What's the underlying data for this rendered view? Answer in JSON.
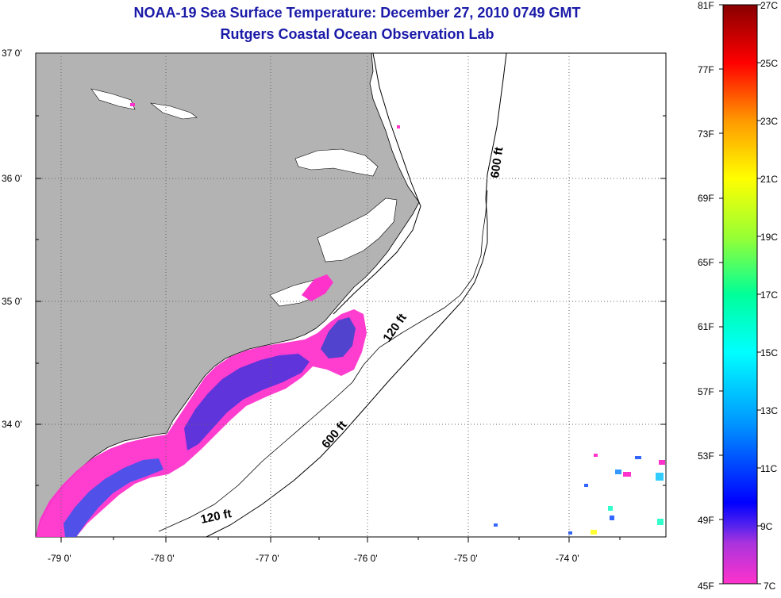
{
  "title": {
    "line1": "NOAA-19 Sea Surface Temperature:  December 27, 2010 0749 GMT",
    "line2": "Rutgers Coastal Ocean Observation Lab"
  },
  "lat_labels": [
    "37 0'",
    "36 0'",
    "35 0'",
    "34 0'"
  ],
  "lon_labels": [
    "-79 0'",
    "-78 0'",
    "-77 0'",
    "-76 0'",
    "-75 0'",
    "-74 0'"
  ],
  "contour_labels": [
    "600 ft",
    "120 ft",
    "600 ft",
    "120 ft"
  ],
  "colorbar": {
    "f_labels": [
      "81F",
      "77F",
      "73F",
      "69F",
      "65F",
      "61F",
      "57F",
      "53F",
      "49F",
      "45F"
    ],
    "c_labels": [
      "27C",
      "25C",
      "23C",
      "21C",
      "19C",
      "17C",
      "15C",
      "13C",
      "11C",
      "9C",
      "7C"
    ]
  },
  "colors": {
    "land": "#b3b3b3",
    "water": "#ffffff",
    "title": "#1a1aa8",
    "cold_sst": "#ff33cc",
    "mid_sst": "#3344dd"
  }
}
